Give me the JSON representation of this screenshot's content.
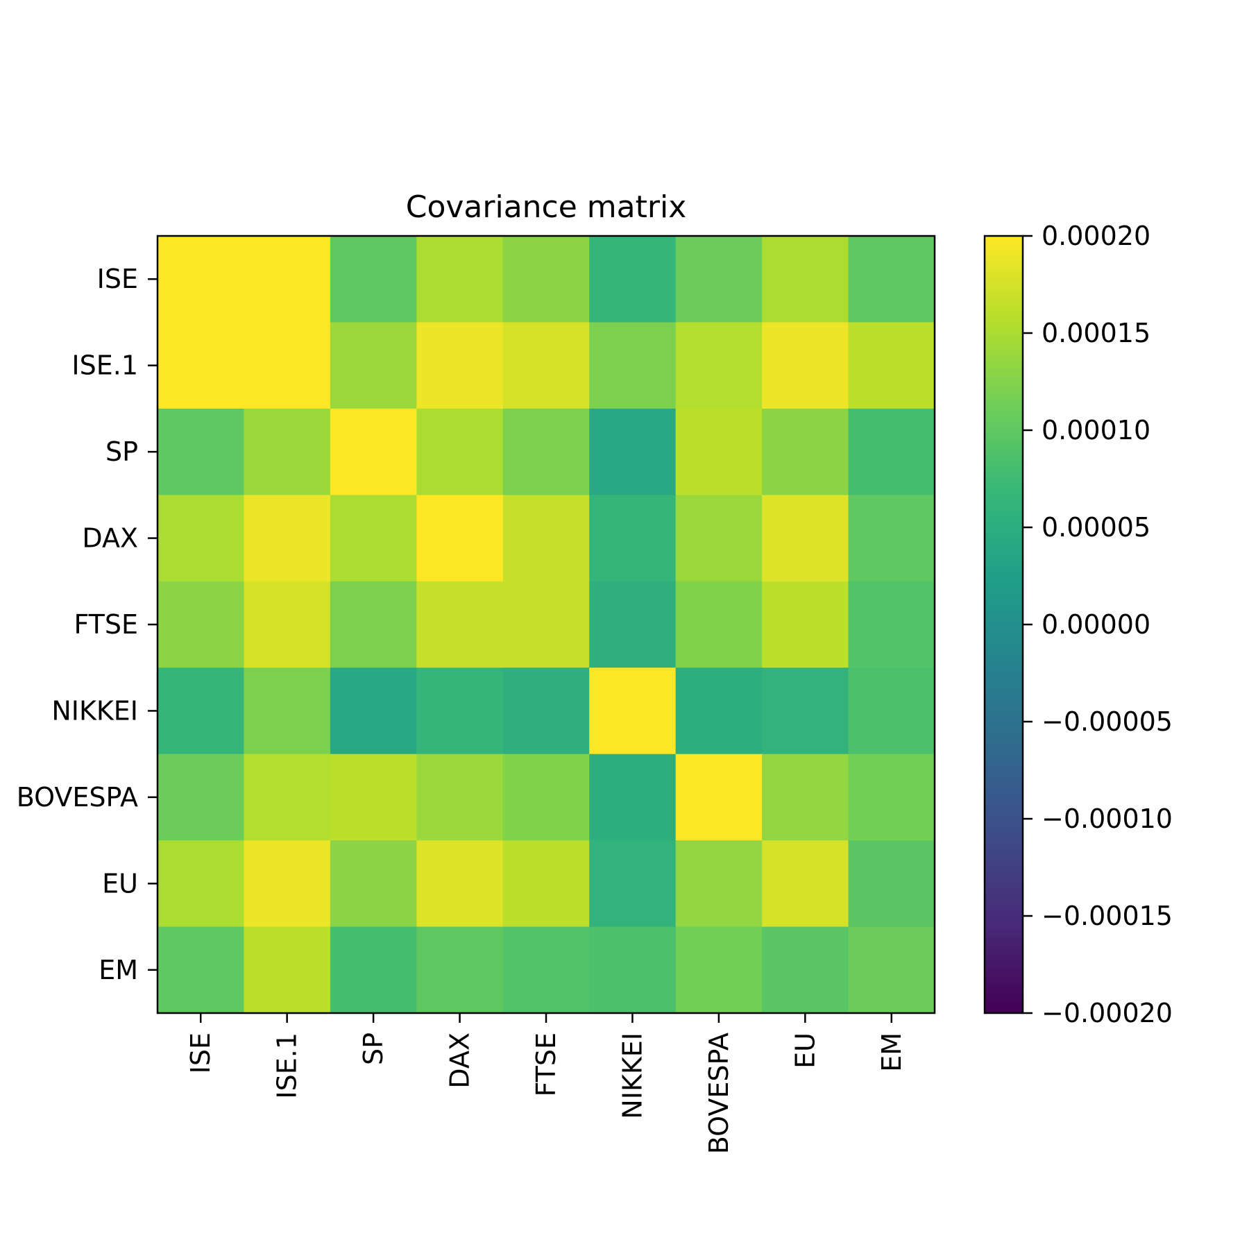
{
  "chart_data": {
    "type": "heatmap",
    "title": "Covariance matrix",
    "x_labels": [
      "ISE",
      "ISE.1",
      "SP",
      "DAX",
      "FTSE",
      "NIKKEI",
      "BOVESPA",
      "EU",
      "EM"
    ],
    "y_labels": [
      "ISE",
      "ISE.1",
      "SP",
      "DAX",
      "FTSE",
      "NIKKEI",
      "BOVESPA",
      "EU",
      "EM"
    ],
    "values": [
      [
        0.0002,
        0.0002,
        0.0001,
        0.00015,
        0.00013,
        6.5e-05,
        0.00011,
        0.00015,
        0.0001
      ],
      [
        0.0002,
        0.0002,
        0.00014,
        0.00019,
        0.000175,
        0.00012,
        0.000155,
        0.00019,
        0.00016
      ],
      [
        0.0001,
        0.00014,
        0.0002,
        0.00015,
        0.00012,
        4e-05,
        0.00016,
        0.00013,
        8e-05
      ],
      [
        0.00015,
        0.00019,
        0.00015,
        0.0002,
        0.000165,
        6.5e-05,
        0.00014,
        0.00018,
        0.0001
      ],
      [
        0.00013,
        0.000175,
        0.00012,
        0.000165,
        0.000165,
        5.5e-05,
        0.000125,
        0.00016,
        9e-05
      ],
      [
        6.5e-05,
        0.00012,
        4e-05,
        6.5e-05,
        5.5e-05,
        0.0002,
        5e-05,
        6e-05,
        8.5e-05
      ],
      [
        0.00011,
        0.000155,
        0.00016,
        0.00014,
        0.000125,
        5e-05,
        0.0002,
        0.000135,
        0.000115
      ],
      [
        0.00015,
        0.00019,
        0.00013,
        0.00018,
        0.00016,
        6e-05,
        0.000135,
        0.000175,
        9.5e-05
      ],
      [
        0.0001,
        0.00016,
        8e-05,
        0.0001,
        9e-05,
        8.5e-05,
        0.000115,
        9.5e-05,
        0.00011
      ]
    ],
    "vmin": -0.0002,
    "vmax": 0.0002,
    "colormap": "viridis",
    "colorbar_ticks": [
      {
        "value": 0.0002,
        "label": "0.00020"
      },
      {
        "value": 0.00015,
        "label": "0.00015"
      },
      {
        "value": 0.0001,
        "label": "0.00010"
      },
      {
        "value": 5e-05,
        "label": "0.00005"
      },
      {
        "value": 0,
        "label": "0.00000"
      },
      {
        "value": -5e-05,
        "label": "−0.00005"
      },
      {
        "value": -0.0001,
        "label": "−0.00010"
      },
      {
        "value": -0.00015,
        "label": "−0.00015"
      },
      {
        "value": -0.0002,
        "label": "−0.00020"
      }
    ],
    "x_tick_rotation": "vertical",
    "grid": false,
    "colorbar_position": "right"
  }
}
